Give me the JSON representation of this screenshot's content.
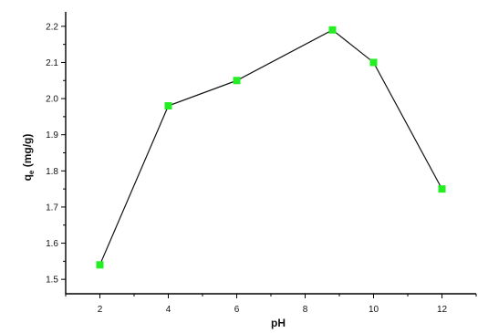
{
  "chart_data": {
    "type": "line",
    "title": "",
    "xlabel": "pH",
    "ylabel_main": "q",
    "ylabel_sub": "e",
    "ylabel_unit": " (mg/g)",
    "x": [
      2,
      4,
      6,
      8.8,
      10,
      12
    ],
    "series": [
      {
        "values": [
          1.54,
          1.98,
          2.05,
          2.19,
          2.1,
          1.75
        ]
      }
    ],
    "xlim": [
      1,
      13
    ],
    "ylim": [
      1.46,
      2.24
    ],
    "xticks": [
      2,
      4,
      6,
      8,
      10,
      12
    ],
    "xtick_labels": [
      "2",
      "4",
      "6",
      "8",
      "10",
      "12"
    ],
    "yticks": [
      1.5,
      1.6,
      1.7,
      1.8,
      1.9,
      2.0,
      2.1,
      2.2
    ],
    "ytick_labels": [
      "1.5",
      "1.6",
      "1.7",
      "1.8",
      "1.9",
      "2.0",
      "2.1",
      "2.2"
    ],
    "grid": false,
    "legend": "none",
    "marker": "square",
    "colors": {
      "marker": "#22ee22",
      "line": "#111111",
      "axis": "#000000"
    }
  }
}
